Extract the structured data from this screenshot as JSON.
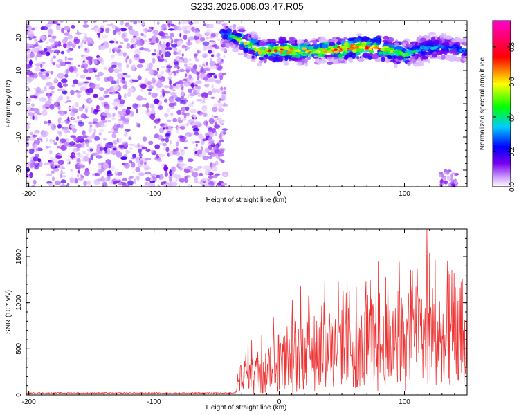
{
  "figure_title": "S233.2026.008.03.47.R05",
  "chart_data": [
    {
      "type": "heatmap",
      "title": "S233.2026.008.03.47.R05",
      "xlabel": "Height of straight line (km)",
      "ylabel": "Frequency (Hz)",
      "xlim": [
        -202,
        150
      ],
      "ylim": [
        -25,
        25
      ],
      "xticks": [
        -200,
        -100,
        0,
        100
      ],
      "yticks": [
        -20,
        -10,
        0,
        10,
        20
      ],
      "colorbar": {
        "label": "Normalized spectral amplitude",
        "range": [
          0,
          0.95
        ],
        "ticks": [
          0.0,
          0.2,
          0.4,
          0.6,
          0.8
        ],
        "colors": [
          "#ffffff",
          "#cc99ff",
          "#7700ee",
          "#0000ff",
          "#00ccff",
          "#00ff00",
          "#ffff00",
          "#ff0000",
          "#ff00cc"
        ]
      },
      "features": {
        "noise_region_km": [
          -202,
          -45
        ],
        "signal_band": {
          "x": [
            -45,
            -30,
            -15,
            0,
            20,
            40,
            60,
            80,
            100,
            120,
            135,
            150
          ],
          "freq_hz": [
            21,
            19,
            16,
            16,
            16,
            16,
            17,
            17,
            15,
            17,
            17,
            16
          ],
          "peak_amplitude": [
            0.3,
            0.6,
            0.75,
            0.8,
            0.7,
            0.75,
            0.85,
            0.8,
            0.5,
            0.4,
            0.3,
            0.35
          ]
        }
      }
    },
    {
      "type": "line",
      "xlabel": "Height of straight line (km)",
      "ylabel": "SNR (10 * v/v)",
      "xlim": [
        -202,
        150
      ],
      "ylim": [
        0,
        1800
      ],
      "xticks": [
        -200,
        -100,
        0,
        100
      ],
      "yticks": [
        0,
        500,
        1000,
        1500
      ],
      "color": "#ee3333",
      "series": [
        {
          "name": "SNR",
          "x": [
            -202,
            -150,
            -100,
            -50,
            -35,
            -30,
            -20,
            -10,
            0,
            10,
            20,
            40,
            60,
            80,
            100,
            110,
            120,
            130,
            140,
            150
          ],
          "y": [
            20,
            20,
            20,
            20,
            20,
            300,
            320,
            380,
            450,
            500,
            650,
            700,
            650,
            700,
            750,
            800,
            900,
            700,
            700,
            650
          ]
        }
      ],
      "annotations": {
        "max_peak": {
          "x": 118,
          "y": 1800
        }
      }
    }
  ]
}
